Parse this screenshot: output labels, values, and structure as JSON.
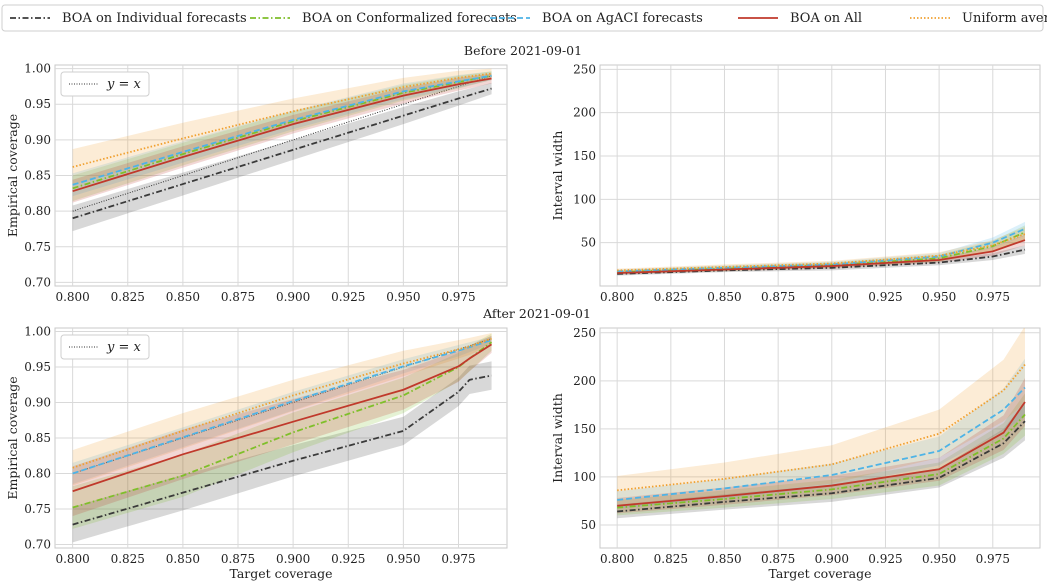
{
  "legend": [
    {
      "label": "BOA on Individual forecasts",
      "color": "#3a3a3a",
      "dash": "dashdot"
    },
    {
      "label": "BOA on Conformalized forecasts",
      "color": "#7fbf2a",
      "dash": "dashdot"
    },
    {
      "label": "BOA on AgACI forecasts",
      "color": "#4db3e6",
      "dash": "dashed"
    },
    {
      "label": "BOA on All",
      "color": "#c0392b",
      "dash": "solid"
    },
    {
      "label": "Uniform average",
      "color": "#f0a030",
      "dash": "dotted"
    }
  ],
  "panel_titles": [
    "Before 2021-09-01",
    "After 2021-09-01"
  ],
  "inset_legend": {
    "label": "y = x"
  },
  "colors": {
    "grid": "#d9d9d9",
    "frame": "#c8c8c8",
    "identity": "#333333"
  },
  "chart_data": [
    {
      "type": "line",
      "period": "Before 2021-09-01",
      "xlabel": "",
      "ylabel": "Empirical coverage",
      "xlim": [
        0.792,
        0.997
      ],
      "ylim": [
        0.695,
        1.005
      ],
      "xticks": [
        "0.800",
        "0.825",
        "0.850",
        "0.875",
        "0.900",
        "0.925",
        "0.950",
        "0.975"
      ],
      "yticks": [
        "0.70",
        "0.75",
        "0.80",
        "0.85",
        "0.90",
        "0.95",
        "1.00"
      ],
      "identity_line": true,
      "x": [
        0.8,
        0.85,
        0.9,
        0.95,
        0.975,
        0.99
      ],
      "series": [
        {
          "name": "BOA on Individual forecasts",
          "values": [
            0.79,
            0.838,
            0.886,
            0.934,
            0.958,
            0.972
          ],
          "band": [
            0.018,
            0.016,
            0.014,
            0.012,
            0.01,
            0.008
          ]
        },
        {
          "name": "BOA on Conformalized forecasts",
          "values": [
            0.832,
            0.88,
            0.926,
            0.966,
            0.981,
            0.99
          ],
          "band": [
            0.018,
            0.016,
            0.014,
            0.011,
            0.009,
            0.006
          ]
        },
        {
          "name": "BOA on AgACI forecasts",
          "values": [
            0.837,
            0.883,
            0.928,
            0.968,
            0.982,
            0.99
          ],
          "band": [
            0.016,
            0.015,
            0.013,
            0.011,
            0.009,
            0.006
          ]
        },
        {
          "name": "BOA on All",
          "values": [
            0.828,
            0.876,
            0.922,
            0.962,
            0.978,
            0.986
          ],
          "band": [
            0.016,
            0.015,
            0.013,
            0.011,
            0.009,
            0.007
          ]
        },
        {
          "name": "Uniform average",
          "values": [
            0.862,
            0.902,
            0.94,
            0.974,
            0.987,
            0.993
          ],
          "band": [
            0.025,
            0.022,
            0.018,
            0.013,
            0.01,
            0.007
          ]
        }
      ]
    },
    {
      "type": "line",
      "period": "Before 2021-09-01",
      "xlabel": "",
      "ylabel": "Interval width",
      "xlim": [
        0.792,
        0.997
      ],
      "ylim": [
        0,
        255
      ],
      "xticks": [
        "0.800",
        "0.825",
        "0.850",
        "0.875",
        "0.900",
        "0.925",
        "0.950",
        "0.975"
      ],
      "yticks": [
        "50",
        "100",
        "150",
        "200",
        "250"
      ],
      "identity_line": false,
      "x": [
        0.8,
        0.85,
        0.9,
        0.95,
        0.975,
        0.99
      ],
      "series": [
        {
          "name": "BOA on Individual forecasts",
          "values": [
            14,
            18,
            21,
            27,
            34,
            42
          ],
          "band": [
            2,
            2,
            3,
            3,
            4,
            5
          ]
        },
        {
          "name": "BOA on Conformalized forecasts",
          "values": [
            16,
            20,
            24,
            32,
            46,
            62
          ],
          "band": [
            2,
            3,
            3,
            4,
            6,
            8
          ]
        },
        {
          "name": "BOA on AgACI forecasts",
          "values": [
            17,
            21,
            25,
            34,
            50,
            66
          ],
          "band": [
            2,
            3,
            3,
            4,
            6,
            8
          ]
        },
        {
          "name": "BOA on All",
          "values": [
            15,
            19,
            23,
            30,
            40,
            53
          ],
          "band": [
            2,
            2,
            3,
            3,
            5,
            6
          ]
        },
        {
          "name": "Uniform average",
          "values": [
            18,
            22,
            26,
            35,
            47,
            60
          ],
          "band": [
            2,
            3,
            3,
            4,
            6,
            8
          ]
        }
      ]
    },
    {
      "type": "line",
      "period": "After 2021-09-01",
      "xlabel": "Target coverage",
      "ylabel": "Empirical coverage",
      "xlim": [
        0.792,
        0.997
      ],
      "ylim": [
        0.695,
        1.005
      ],
      "xticks": [
        "0.800",
        "0.825",
        "0.850",
        "0.875",
        "0.900",
        "0.925",
        "0.950",
        "0.975"
      ],
      "yticks": [
        "0.70",
        "0.75",
        "0.80",
        "0.85",
        "0.90",
        "0.95",
        "1.00"
      ],
      "identity_line": true,
      "x": [
        0.8,
        0.85,
        0.9,
        0.95,
        0.975,
        0.98,
        0.99
      ],
      "series": [
        {
          "name": "BOA on Individual forecasts",
          "values": [
            0.728,
            0.773,
            0.818,
            0.86,
            0.915,
            0.932,
            0.938
          ],
          "band": [
            0.025,
            0.025,
            0.022,
            0.02,
            0.02,
            0.02,
            0.02
          ]
        },
        {
          "name": "BOA on Conformalized forecasts",
          "values": [
            0.752,
            0.797,
            0.858,
            0.91,
            0.95,
            0.962,
            0.985
          ],
          "band": [
            0.03,
            0.03,
            0.028,
            0.025,
            0.02,
            0.018,
            0.012
          ]
        },
        {
          "name": "BOA on AgACI forecasts",
          "values": [
            0.8,
            0.851,
            0.902,
            0.951,
            0.973,
            0.978,
            0.988
          ],
          "band": [
            0.015,
            0.014,
            0.013,
            0.01,
            0.008,
            0.007,
            0.005
          ]
        },
        {
          "name": "BOA on All",
          "values": [
            0.775,
            0.827,
            0.873,
            0.918,
            0.951,
            0.962,
            0.982
          ],
          "band": [
            0.035,
            0.035,
            0.032,
            0.028,
            0.022,
            0.018,
            0.012
          ]
        },
        {
          "name": "Uniform average",
          "values": [
            0.808,
            0.86,
            0.91,
            0.955,
            0.975,
            0.979,
            0.99
          ],
          "band": [
            0.025,
            0.025,
            0.022,
            0.018,
            0.013,
            0.012,
            0.008
          ]
        }
      ]
    },
    {
      "type": "line",
      "period": "After 2021-09-01",
      "xlabel": "Target coverage",
      "ylabel": "Interval width",
      "xlim": [
        0.792,
        0.997
      ],
      "ylim": [
        26,
        255
      ],
      "xticks": [
        "0.800",
        "0.825",
        "0.850",
        "0.875",
        "0.900",
        "0.925",
        "0.950",
        "0.975"
      ],
      "yticks": [
        "50",
        "100",
        "150",
        "200",
        "250"
      ],
      "identity_line": false,
      "x": [
        0.8,
        0.85,
        0.9,
        0.95,
        0.98,
        0.99
      ],
      "series": [
        {
          "name": "BOA on Individual forecasts",
          "values": [
            64,
            74,
            83,
            99,
            135,
            158
          ],
          "band": [
            7,
            8,
            9,
            10,
            15,
            20
          ]
        },
        {
          "name": "BOA on Conformalized forecasts",
          "values": [
            68,
            77,
            87,
            103,
            140,
            165
          ],
          "band": [
            8,
            9,
            10,
            12,
            16,
            22
          ]
        },
        {
          "name": "BOA on AgACI forecasts",
          "values": [
            76,
            88,
            102,
            127,
            170,
            193
          ],
          "band": [
            9,
            10,
            12,
            15,
            22,
            30
          ]
        },
        {
          "name": "BOA on All",
          "values": [
            70,
            80,
            91,
            108,
            146,
            178
          ],
          "band": [
            8,
            9,
            10,
            12,
            18,
            25
          ]
        },
        {
          "name": "Uniform average",
          "values": [
            86,
            98,
            113,
            145,
            190,
            217
          ],
          "band": [
            15,
            17,
            20,
            25,
            32,
            40
          ]
        }
      ]
    }
  ]
}
